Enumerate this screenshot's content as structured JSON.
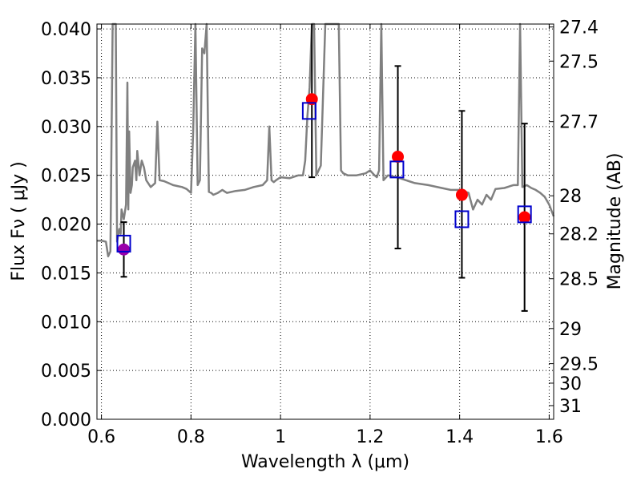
{
  "chart_data": {
    "type": "scatter",
    "xlabel": "Wavelength  λ (μm)",
    "ylabel": "Flux  Fν ( μJy )",
    "ylabel_right": "Magnitude (AB)",
    "xlim": [
      0.59,
      1.61
    ],
    "ylim": [
      0.0,
      0.0405
    ],
    "grid": true,
    "x_ticks": [
      0.6,
      0.8,
      1.0,
      1.2,
      1.4,
      1.6
    ],
    "x_tick_labels": [
      "0.6",
      "0.8",
      "1",
      "1.2",
      "1.4",
      "1.6"
    ],
    "y_ticks": [
      0.0,
      0.005,
      0.01,
      0.015,
      0.02,
      0.025,
      0.03,
      0.035,
      0.04
    ],
    "y_tick_labels": [
      "0.000",
      "0.005",
      "0.010",
      "0.015",
      "0.020",
      "0.025",
      "0.030",
      "0.035",
      "0.040"
    ],
    "right_ticks": [
      {
        "label": "27.4",
        "flux": 0.0402
      },
      {
        "label": "27.5",
        "flux": 0.0367
      },
      {
        "label": "27.7",
        "flux": 0.0305
      },
      {
        "label": "28",
        "flux": 0.0229
      },
      {
        "label": "28.2",
        "flux": 0.019
      },
      {
        "label": "28.5",
        "flux": 0.0144
      },
      {
        "label": "29",
        "flux": 0.0093
      },
      {
        "label": "29.5",
        "flux": 0.0057
      },
      {
        "label": "30",
        "flux": 0.0037
      },
      {
        "label": "31",
        "flux": 0.0014
      }
    ],
    "series": [
      {
        "name": "model spectrum",
        "type": "line",
        "color": "#808080",
        "x": [
          0.59,
          0.6,
          0.61,
          0.615,
          0.62,
          0.625,
          0.628,
          0.632,
          0.635,
          0.64,
          0.643,
          0.645,
          0.65,
          0.655,
          0.658,
          0.66,
          0.662,
          0.665,
          0.668,
          0.67,
          0.675,
          0.678,
          0.68,
          0.685,
          0.69,
          0.695,
          0.7,
          0.71,
          0.72,
          0.725,
          0.73,
          0.74,
          0.75,
          0.76,
          0.77,
          0.78,
          0.79,
          0.8,
          0.805,
          0.81,
          0.815,
          0.82,
          0.825,
          0.83,
          0.835,
          0.84,
          0.845,
          0.85,
          0.86,
          0.87,
          0.88,
          0.9,
          0.92,
          0.94,
          0.96,
          0.97,
          0.975,
          0.98,
          0.985,
          0.99,
          1.0,
          1.02,
          1.04,
          1.05,
          1.055,
          1.06,
          1.065,
          1.07,
          1.075,
          1.08,
          1.09,
          1.1,
          1.12,
          1.13,
          1.135,
          1.14,
          1.15,
          1.17,
          1.19,
          1.2,
          1.21,
          1.215,
          1.22,
          1.225,
          1.23,
          1.24,
          1.26,
          1.28,
          1.3,
          1.33,
          1.36,
          1.38,
          1.4,
          1.42,
          1.43,
          1.44,
          1.45,
          1.46,
          1.47,
          1.48,
          1.5,
          1.52,
          1.53,
          1.535,
          1.54,
          1.55,
          1.56,
          1.57,
          1.58,
          1.59,
          1.6,
          1.61
        ],
        "y": [
          0.0183,
          0.0183,
          0.0182,
          0.0167,
          0.0172,
          0.0405,
          0.0405,
          0.0405,
          0.0182,
          0.0195,
          0.019,
          0.0215,
          0.0205,
          0.022,
          0.0345,
          0.0215,
          0.0295,
          0.0232,
          0.024,
          0.0258,
          0.0265,
          0.0245,
          0.0275,
          0.025,
          0.0265,
          0.0258,
          0.0245,
          0.0238,
          0.0242,
          0.0305,
          0.0245,
          0.0244,
          0.0242,
          0.024,
          0.0239,
          0.0238,
          0.0236,
          0.0232,
          0.0295,
          0.0405,
          0.024,
          0.0245,
          0.038,
          0.0375,
          0.0405,
          0.0233,
          0.0232,
          0.023,
          0.0232,
          0.0235,
          0.0232,
          0.0234,
          0.0235,
          0.0238,
          0.024,
          0.0245,
          0.03,
          0.0245,
          0.0243,
          0.0245,
          0.0248,
          0.0247,
          0.025,
          0.025,
          0.0265,
          0.031,
          0.034,
          0.0405,
          0.0405,
          0.025,
          0.026,
          0.0405,
          0.0405,
          0.0405,
          0.0255,
          0.0252,
          0.025,
          0.025,
          0.0252,
          0.0255,
          0.025,
          0.0248,
          0.0255,
          0.0405,
          0.0245,
          0.025,
          0.0248,
          0.0245,
          0.0242,
          0.024,
          0.0237,
          0.0235,
          0.0235,
          0.0232,
          0.0215,
          0.0225,
          0.022,
          0.023,
          0.0225,
          0.0236,
          0.0237,
          0.024,
          0.024,
          0.0405,
          0.0238,
          0.024,
          0.0237,
          0.0235,
          0.0232,
          0.0228,
          0.022,
          0.0208
        ]
      },
      {
        "name": "observed flux",
        "type": "errorbar",
        "color": "#000000",
        "x": [
          0.65,
          1.07,
          1.262,
          1.405,
          1.545
        ],
        "y": [
          0.0174,
          0.0328,
          0.0269,
          0.023,
          0.0207
        ],
        "yerr_low": [
          0.0028,
          0.008,
          0.0094,
          0.0085,
          0.0096
        ],
        "yerr_high": [
          0.0028,
          0.0077,
          0.0093,
          0.0086,
          0.0096
        ]
      },
      {
        "name": "observed points",
        "type": "scatter",
        "marker": "circle",
        "x": [
          0.65,
          1.07,
          1.262,
          1.405,
          1.545
        ],
        "y": [
          0.0174,
          0.0328,
          0.0269,
          0.023,
          0.0207
        ],
        "colors": [
          "#9900aa",
          "#ff0000",
          "#ff0000",
          "#ff0000",
          "#ff0000"
        ]
      },
      {
        "name": "model photometry",
        "type": "scatter",
        "marker": "square",
        "color": "#0000cc",
        "x": [
          0.65,
          1.064,
          1.26,
          1.405,
          1.545
        ],
        "y": [
          0.018,
          0.0316,
          0.0256,
          0.0205,
          0.021
        ]
      }
    ]
  }
}
